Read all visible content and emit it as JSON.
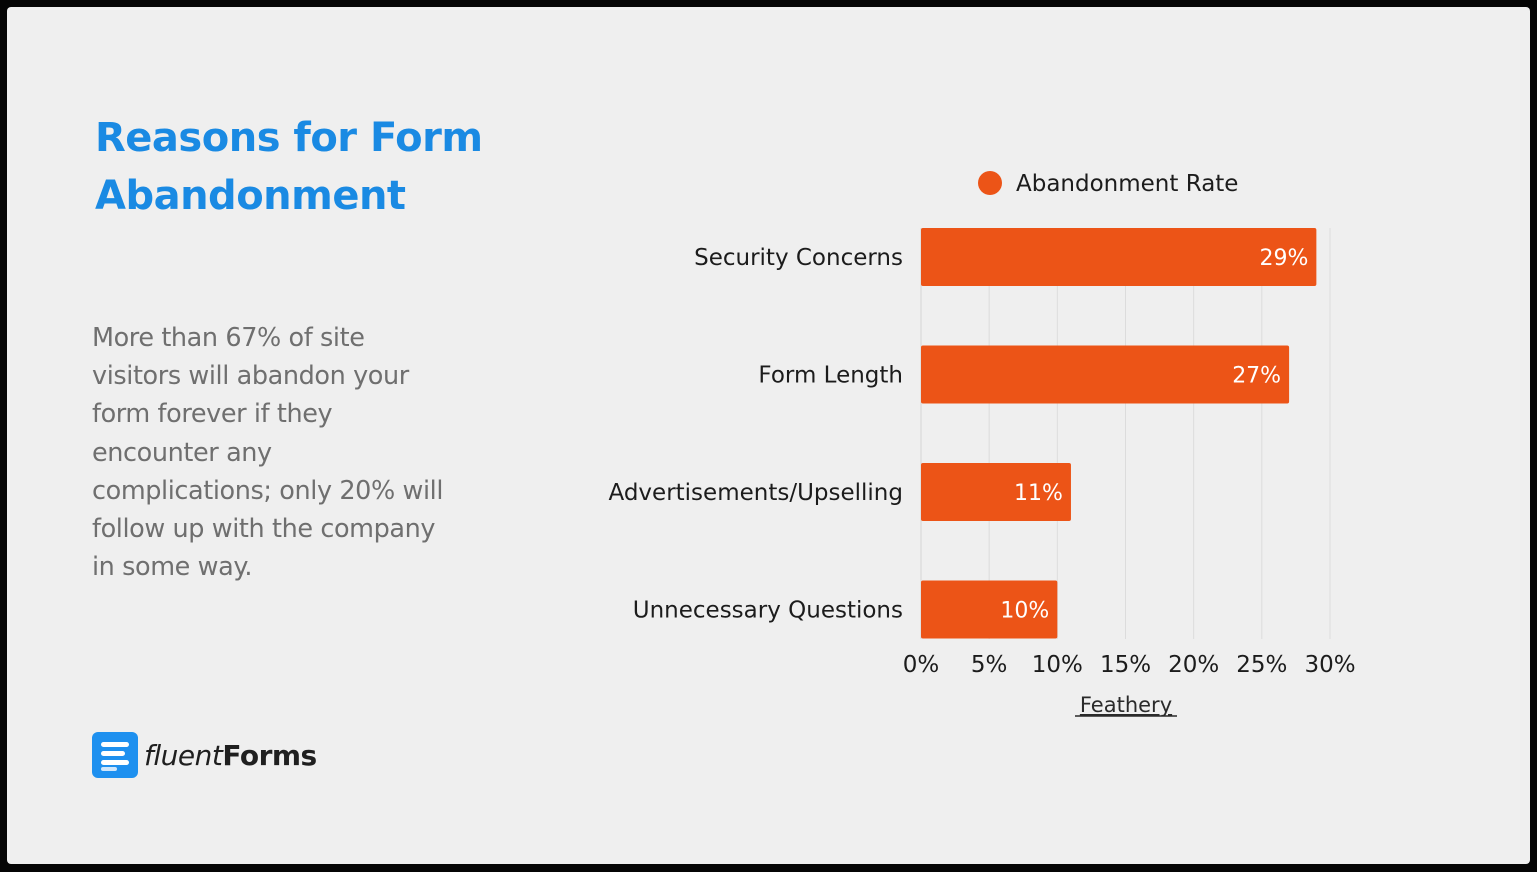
{
  "slide": {
    "title": "Reasons for Form Abandonment",
    "description": "More than 67% of site visitors will abandon your form forever if they encounter any complications; only 20% will follow up with the company in some way.",
    "logo": {
      "light": "fluent",
      "bold": "Forms",
      "icon": "fluentforms-logo-icon"
    },
    "colors": {
      "title": "#1a8ae3",
      "bar": "#ec5417",
      "logo": "#1e90ef"
    }
  },
  "chart_data": {
    "type": "bar",
    "orientation": "horizontal",
    "categories": [
      "Security Concerns",
      "Form Length",
      "Advertisements/Upselling",
      "Unnecessary Questions"
    ],
    "series": [
      {
        "name": "Abandonment Rate",
        "values": [
          29,
          27,
          11,
          10
        ],
        "color": "#ec5417"
      }
    ],
    "value_labels": [
      "29%",
      "27%",
      "11%",
      "10%"
    ],
    "xlim": [
      0,
      30
    ],
    "x_ticks": [
      0,
      5,
      10,
      15,
      20,
      25,
      30
    ],
    "x_tick_labels": [
      "0%",
      "5%",
      "10%",
      "15%",
      "20%",
      "25%",
      "30%"
    ],
    "grid": "vertical",
    "legend": "top",
    "source": "Feathery"
  }
}
